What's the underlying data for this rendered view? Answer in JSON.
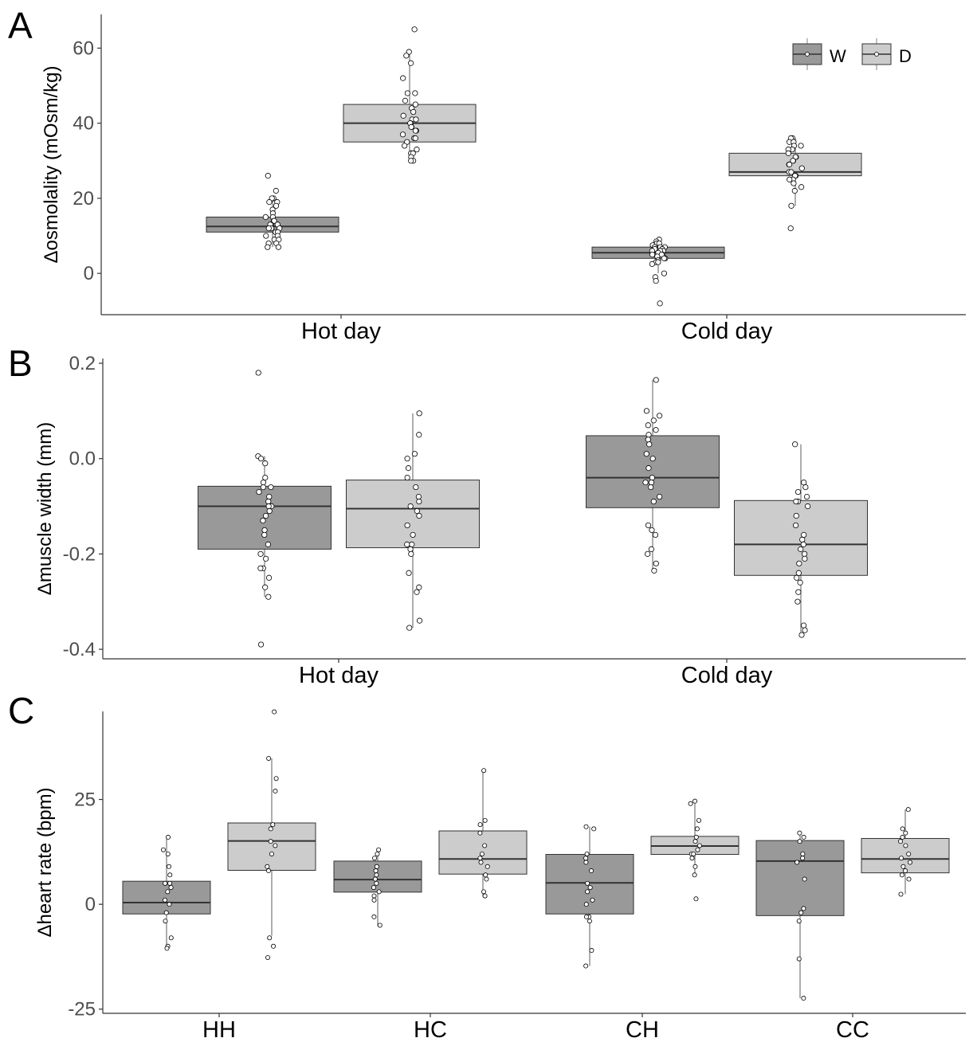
{
  "colors": {
    "W": "#999999",
    "D": "#cccccc",
    "edge": "#333333",
    "axis": "#333333",
    "point_fill": "#ffffff",
    "point_edge": "#000000"
  },
  "chart_data": [
    {
      "type": "box",
      "panel_letter": "A",
      "ylabel": "Δosmolality (mOsm/kg)",
      "ylim": [
        -11,
        69
      ],
      "yticks": [
        0,
        20,
        40,
        60
      ],
      "ytick_labels": [
        "0",
        "20",
        "40",
        "60"
      ],
      "categories": [
        "Hot day",
        "Cold day"
      ],
      "legend": {
        "position": "top-right",
        "entries": [
          "W",
          "D"
        ]
      },
      "series": [
        {
          "name": "W",
          "boxes": [
            {
              "q1": 11,
              "median": 12.5,
              "q3": 15,
              "whisker_low": 7,
              "whisker_high": 20,
              "points": [
                26,
                22,
                20,
                20,
                19,
                19,
                18,
                17,
                16,
                15,
                15,
                14,
                14,
                13,
                13,
                13,
                12,
                12,
                12,
                11,
                11,
                10,
                10,
                9,
                9,
                8,
                8,
                7,
                7
              ]
            },
            {
              "q1": 4,
              "median": 5.5,
              "q3": 7,
              "whisker_low": 0,
              "whisker_high": 9,
              "points": [
                9,
                8.5,
                8,
                8,
                7.5,
                7,
                7,
                7,
                6.5,
                6.5,
                6,
                6,
                6,
                5.5,
                5,
                5,
                5,
                4.5,
                4,
                4,
                3.5,
                3,
                3,
                2.5,
                0,
                -1,
                -2,
                -8
              ]
            }
          ]
        },
        {
          "name": "D",
          "boxes": [
            {
              "q1": 35,
              "median": 40,
              "q3": 45,
              "whisker_low": 30,
              "whisker_high": 59,
              "points": [
                65,
                59,
                58,
                56,
                52,
                48,
                48,
                46,
                45,
                44,
                43,
                42,
                41,
                41,
                40,
                40,
                39,
                39,
                38,
                38,
                37,
                36,
                36,
                35,
                34,
                33,
                32,
                32,
                31,
                30,
                30
              ]
            },
            {
              "q1": 26,
              "median": 27,
              "q3": 32,
              "whisker_low": 18,
              "whisker_high": 36,
              "points": [
                36,
                36,
                35,
                35,
                34,
                34,
                33,
                33,
                32,
                31,
                31,
                30,
                30,
                29,
                29,
                28,
                27,
                27,
                26,
                26,
                25,
                25,
                24,
                23,
                22,
                18,
                12
              ]
            }
          ]
        }
      ]
    },
    {
      "type": "box",
      "panel_letter": "B",
      "ylabel": "Δmuscle width (mm)",
      "ylim": [
        -0.42,
        0.21
      ],
      "yticks": [
        -0.4,
        -0.2,
        0.0,
        0.2
      ],
      "ytick_labels": [
        "-0.4",
        "-0.2",
        "0.0",
        "0.2"
      ],
      "categories": [
        "Hot day",
        "Cold day"
      ],
      "series": [
        {
          "name": "W",
          "boxes": [
            {
              "q1": -0.19,
              "median": -0.1,
              "q3": -0.058,
              "whisker_low": -0.29,
              "whisker_high": 0.005,
              "points": [
                0.18,
                0.005,
                0.0,
                -0.01,
                -0.04,
                -0.05,
                -0.06,
                -0.06,
                -0.07,
                -0.08,
                -0.09,
                -0.1,
                -0.1,
                -0.11,
                -0.12,
                -0.13,
                -0.15,
                -0.16,
                -0.18,
                -0.2,
                -0.21,
                -0.23,
                -0.23,
                -0.25,
                -0.27,
                -0.29,
                -0.39
              ]
            },
            {
              "q1": -0.103,
              "median": -0.04,
              "q3": 0.048,
              "whisker_low": -0.235,
              "whisker_high": 0.165,
              "points": [
                0.165,
                0.1,
                0.09,
                0.08,
                0.07,
                0.06,
                0.05,
                0.04,
                0.03,
                0.01,
                0.0,
                -0.02,
                -0.04,
                -0.05,
                -0.05,
                -0.06,
                -0.08,
                -0.09,
                -0.14,
                -0.15,
                -0.16,
                -0.19,
                -0.2,
                -0.22,
                -0.235
              ]
            }
          ]
        },
        {
          "name": "D",
          "boxes": [
            {
              "q1": -0.187,
              "median": -0.105,
              "q3": -0.045,
              "whisker_low": -0.355,
              "whisker_high": 0.095,
              "points": [
                0.095,
                0.05,
                0.01,
                0.0,
                -0.02,
                -0.04,
                -0.06,
                -0.08,
                -0.09,
                -0.1,
                -0.11,
                -0.12,
                -0.14,
                -0.16,
                -0.18,
                -0.18,
                -0.19,
                -0.2,
                -0.24,
                -0.27,
                -0.28,
                -0.34,
                -0.355
              ]
            },
            {
              "q1": -0.245,
              "median": -0.18,
              "q3": -0.088,
              "whisker_low": -0.37,
              "whisker_high": 0.03,
              "points": [
                0.03,
                -0.05,
                -0.06,
                -0.07,
                -0.08,
                -0.09,
                -0.09,
                -0.1,
                -0.12,
                -0.14,
                -0.16,
                -0.17,
                -0.18,
                -0.19,
                -0.2,
                -0.21,
                -0.22,
                -0.24,
                -0.25,
                -0.26,
                -0.28,
                -0.3,
                -0.35,
                -0.36,
                -0.37
              ]
            }
          ]
        }
      ]
    },
    {
      "type": "box",
      "panel_letter": "C",
      "ylabel": "Δheart rate (bpm)",
      "ylim": [
        -26,
        46
      ],
      "yticks": [
        -25,
        0,
        25
      ],
      "ytick_labels": [
        "-25",
        "0",
        "25"
      ],
      "categories": [
        "HH",
        "HC",
        "CH",
        "CC"
      ],
      "series": [
        {
          "name": "W",
          "boxes": [
            {
              "q1": -2.3,
              "median": 0.4,
              "q3": 5.5,
              "whisker_low": -10.8,
              "whisker_high": 16.3,
              "points": [
                16,
                13,
                12,
                9,
                7,
                5,
                5,
                4,
                3,
                1,
                0,
                -2,
                -4,
                -8,
                -10,
                -10.5
              ]
            },
            {
              "q1": 2.9,
              "median": 5.9,
              "q3": 10.3,
              "whisker_low": -5.2,
              "whisker_high": 13.2,
              "points": [
                13,
                12,
                11,
                9,
                8,
                7,
                6,
                5,
                4,
                3,
                2,
                1,
                -3,
                -5
              ]
            },
            {
              "q1": -2.3,
              "median": 5.1,
              "q3": 11.9,
              "whisker_low": -14.7,
              "whisker_high": 18.5,
              "points": [
                18.5,
                18,
                12,
                11,
                10,
                8,
                5,
                4,
                3,
                1,
                0,
                -3,
                -3,
                -4,
                -11,
                -14.7
              ]
            },
            {
              "q1": -2.7,
              "median": 10.3,
              "q3": 15.2,
              "whisker_low": -22.4,
              "whisker_high": 17,
              "points": [
                17,
                16,
                15,
                12,
                11,
                10,
                6,
                -1,
                -2,
                -4,
                -13,
                -22.4
              ]
            }
          ]
        },
        {
          "name": "D",
          "boxes": [
            {
              "q1": 8.1,
              "median": 15.1,
              "q3": 19.4,
              "whisker_low": -7.5,
              "whisker_high": 34.8,
              "points": [
                45.9,
                34.8,
                30,
                27,
                19,
                18,
                15,
                14,
                12,
                9,
                8,
                -8,
                -10,
                -12.7
              ]
            },
            {
              "q1": 7.2,
              "median": 10.8,
              "q3": 17.5,
              "whisker_low": 1.8,
              "whisker_high": 31.9,
              "points": [
                31.9,
                20,
                19,
                17,
                14,
                12,
                11,
                10,
                9,
                7,
                6,
                3,
                2
              ]
            },
            {
              "q1": 11.9,
              "median": 13.9,
              "q3": 16.2,
              "whisker_low": 7.1,
              "whisker_high": 24.6,
              "points": [
                24.6,
                24,
                20,
                18,
                16,
                15,
                14,
                13,
                12,
                12,
                11,
                9,
                7,
                1.3
              ]
            },
            {
              "q1": 7.5,
              "median": 10.8,
              "q3": 15.7,
              "whisker_low": 2.4,
              "whisker_high": 22.6,
              "points": [
                22.6,
                18,
                17,
                16,
                15,
                14,
                12,
                11,
                10,
                9,
                8,
                7,
                6,
                2.4
              ]
            }
          ]
        }
      ]
    }
  ]
}
